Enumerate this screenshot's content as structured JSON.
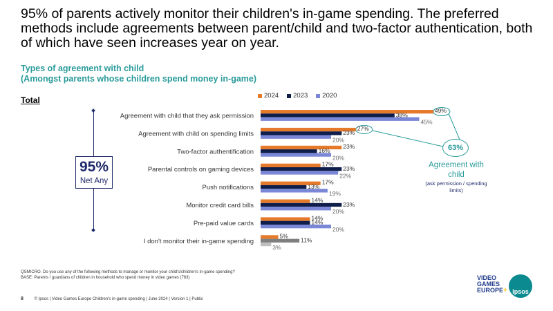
{
  "headline": "95% of parents actively monitor their children's in-game spending. The preferred methods include agreements between parent/child and two-factor authentication, both of which have seen increases year on year.",
  "subtitle_line1": "Types of agreement with child",
  "subtitle_line2": "(Amongst parents whose children spend money in-game)",
  "total_label": "Total",
  "net": {
    "value": "95%",
    "label": "Net Any"
  },
  "callout": {
    "value": "63%",
    "label": "Agreement with child",
    "note": "(ask permission / spending limits)"
  },
  "colors": {
    "2024": "#e57a2b",
    "2023": "#0f1d4a",
    "2020": "#7a86d6",
    "grey_dark": "#7f7f7f",
    "grey_light": "#bfbfbf",
    "teal": "#2b9b9b"
  },
  "chart_data": {
    "type": "bar",
    "orientation": "horizontal",
    "categories": [
      "Agreement with child that they ask permission",
      "Agreement with child on spending limits",
      "Two-factor authentification",
      "Parental controls on gaming devices",
      "Push notifications",
      "Monitor credit card bills",
      "Pre-paid value cards",
      "I don't monitor their in-game spending"
    ],
    "series": [
      {
        "name": "2024",
        "values": [
          49,
          27,
          23,
          17,
          17,
          14,
          14,
          5
        ]
      },
      {
        "name": "2023",
        "values": [
          38,
          23,
          16,
          23,
          13,
          23,
          14,
          11
        ]
      },
      {
        "name": "2020",
        "values": [
          45,
          20,
          20,
          22,
          19,
          20,
          20,
          3
        ]
      }
    ],
    "legend_position": "top",
    "xlim": [
      0,
      50
    ]
  },
  "footnote_line1": "QSMICRO. Do you use any of the following methods to manage or monitor your child's/children's in-game spending?",
  "footnote_line2": "BASE: Parents / guardians of children in household who spend money in video games (783)",
  "footer": {
    "page": "8",
    "text": "© Ipsos | Video Games Europe Children's in-game spending | June 2024 | Version 1 | Public"
  },
  "logos": {
    "vge_line1": "VIDEO",
    "vge_line2": "GAMES",
    "vge_line3": "EUROPE",
    "vge_plus": "+",
    "ipsos": "Ipsos"
  }
}
